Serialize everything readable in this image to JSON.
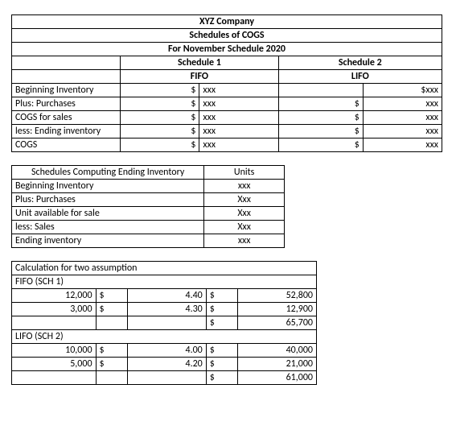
{
  "colors": {
    "border": "#000000",
    "text": "#000000",
    "background": "#ffffff"
  },
  "typography": {
    "font_family": "Calibri, Arial, sans-serif",
    "font_size_pt": 9,
    "bold_headers": true
  },
  "cogs_table": {
    "type": "table",
    "title_lines": [
      "XYZ Company",
      "Schedules of COGS",
      "For November Schedule 2020"
    ],
    "schedule_headers": [
      "Schedule 1",
      "Schedule 2"
    ],
    "method_headers": [
      "FIFO",
      "LIFO"
    ],
    "rows": [
      {
        "label": "Beginning Inventory",
        "s1_sym": "$",
        "s1_val": "xxx",
        "s2_sym": "",
        "s2_val": "$xxx"
      },
      {
        "label": "Plus: Purchases",
        "s1_sym": "$",
        "s1_val": "xxx",
        "s2_sym": "$",
        "s2_val": "xxx"
      },
      {
        "label": "COGS for sales",
        "s1_sym": "$",
        "s1_val": "xxx",
        "s2_sym": "$",
        "s2_val": "xxx"
      },
      {
        "label": "less: Ending inventory",
        "s1_sym": "$",
        "s1_val": "xxx",
        "s2_sym": "$",
        "s2_val": "xxx"
      },
      {
        "label": "COGS",
        "s1_sym": "$",
        "s1_val": "xxx",
        "s2_sym": "$",
        "s2_val": "xxx"
      }
    ]
  },
  "ending_inv_table": {
    "type": "table",
    "title": "Schedules Computing Ending Inventory",
    "units_header": "Units",
    "rows": [
      {
        "label": "Beginning Inventory",
        "units": "xxx"
      },
      {
        "label": "Plus: Purchases",
        "units": "Xxx"
      },
      {
        "label": "Unit available for sale",
        "units": "Xxx"
      },
      {
        "label": "less: Sales",
        "units": "Xxx"
      },
      {
        "label": "Ending inventory",
        "units": "xxx"
      }
    ]
  },
  "calc_table": {
    "type": "table",
    "title": "Calculation for two assumption",
    "sections": {
      "fifo": {
        "header": "FIFO (SCH 1)",
        "rows": [
          {
            "qty": "12,000",
            "sym1": "$",
            "price": "4.40",
            "sym2": "$",
            "amount": "52,800"
          },
          {
            "qty": "3,000",
            "sym1": "$",
            "price": "4.30",
            "sym2": "$",
            "amount": "12,900"
          },
          {
            "qty": "",
            "sym1": "",
            "price": "",
            "sym2": "$",
            "amount": "65,700"
          }
        ]
      },
      "lifo": {
        "header": "LIFO (SCH 2)",
        "rows": [
          {
            "qty": "10,000",
            "sym1": "$",
            "price": "4.00",
            "sym2": "$",
            "amount": "40,000"
          },
          {
            "qty": "5,000",
            "sym1": "$",
            "price": "4.20",
            "sym2": "$",
            "amount": "21,000"
          },
          {
            "qty": "",
            "sym1": "",
            "price": "",
            "sym2": "$",
            "amount": "61,000"
          }
        ]
      }
    }
  }
}
